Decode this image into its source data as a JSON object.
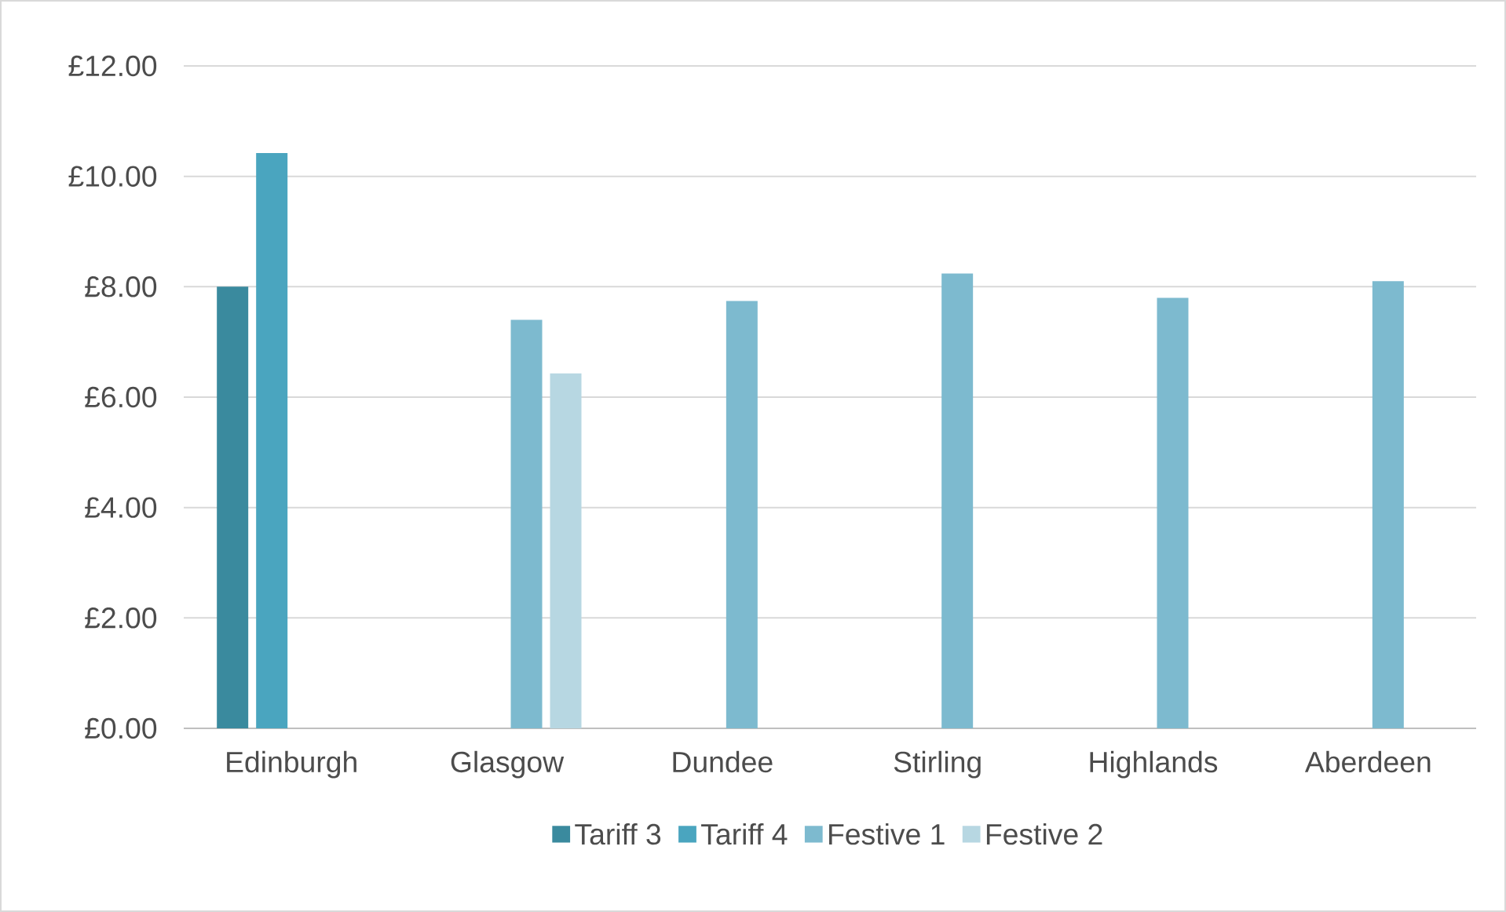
{
  "chart_data": {
    "type": "bar",
    "categories": [
      "Edinburgh",
      "Glasgow",
      "Dundee",
      "Stirling",
      "Highlands",
      "Aberdeen"
    ],
    "series": [
      {
        "name": "Tariff 3",
        "color": "#3a8a9e",
        "values": [
          8.0,
          null,
          null,
          null,
          null,
          null
        ]
      },
      {
        "name": "Tariff 4",
        "color": "#4aa5bf",
        "values": [
          10.42,
          null,
          null,
          null,
          null,
          null
        ]
      },
      {
        "name": "Festive 1",
        "color": "#7dbacf",
        "values": [
          null,
          7.4,
          7.74,
          8.24,
          7.8,
          8.1
        ]
      },
      {
        "name": "Festive 2",
        "color": "#b7d7e2",
        "values": [
          null,
          6.43,
          null,
          null,
          null,
          null
        ]
      }
    ],
    "ylim": [
      0,
      12
    ],
    "yticks": [
      {
        "value": 0,
        "label": "£0.00"
      },
      {
        "value": 2,
        "label": "£2.00"
      },
      {
        "value": 4,
        "label": "£4.00"
      },
      {
        "value": 6,
        "label": "£6.00"
      },
      {
        "value": 8,
        "label": "£8.00"
      },
      {
        "value": 10,
        "label": "£10.00"
      },
      {
        "value": 12,
        "label": "£12.00"
      }
    ],
    "grid": "y",
    "legend": "bottom"
  }
}
